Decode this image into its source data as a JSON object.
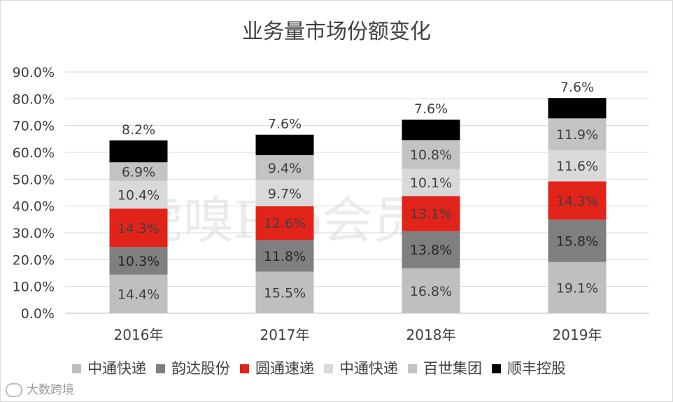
{
  "chart_data": {
    "type": "bar",
    "stacked": true,
    "title": "业务量市场份额变化",
    "categories": [
      "2016年",
      "2017年",
      "2018年",
      "2019年"
    ],
    "ylim": [
      0,
      90
    ],
    "yticks": [
      "0.0%",
      "10.0%",
      "20.0%",
      "30.0%",
      "40.0%",
      "50.0%",
      "60.0%",
      "70.0%",
      "80.0%",
      "90.0%"
    ],
    "series": [
      {
        "name": "中通快递",
        "color": "#bfbfbf",
        "values": [
          14.4,
          15.5,
          16.8,
          19.1
        ],
        "labels": [
          "14.4%",
          "15.5%",
          "16.8%",
          "19.1%"
        ]
      },
      {
        "name": "韵达股份",
        "color": "#7f7f7f",
        "values": [
          10.3,
          11.8,
          13.8,
          15.8
        ],
        "labels": [
          "10.3%",
          "11.8%",
          "13.8%",
          "15.8%"
        ]
      },
      {
        "name": "圆通速递",
        "color": "#e2231a",
        "values": [
          14.3,
          12.6,
          13.1,
          14.3
        ],
        "labels": [
          "14.3%",
          "12.6%",
          "13.1%",
          "14.3%"
        ]
      },
      {
        "name": "中通快递",
        "color": "#d9d9d9",
        "values": [
          10.4,
          9.7,
          10.1,
          11.6
        ],
        "labels": [
          "10.4%",
          "9.7%",
          "10.1%",
          "11.6%"
        ]
      },
      {
        "name": "百世集团",
        "color": "#c3c3c3",
        "values": [
          6.9,
          9.4,
          10.8,
          11.9
        ],
        "labels": [
          "6.9%",
          "9.4%",
          "10.8%",
          "11.9%"
        ]
      },
      {
        "name": "顺丰控股",
        "color": "#000000",
        "values": [
          8.2,
          7.6,
          7.6,
          7.6
        ],
        "labels": [
          "8.2%",
          "7.6%",
          "7.6%",
          "7.6%"
        ]
      }
    ],
    "legend_position": "bottom",
    "grid": true
  },
  "watermark": "虎嗅Pro会员",
  "brand": "大数跨境"
}
